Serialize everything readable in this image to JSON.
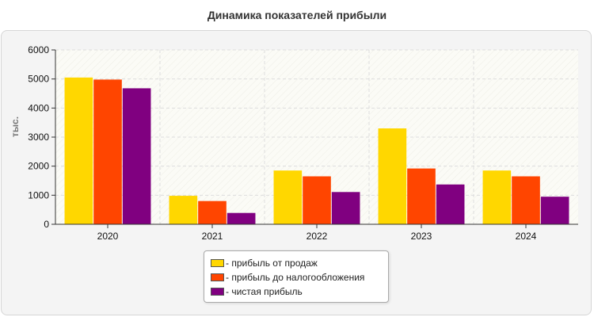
{
  "chart_data": {
    "type": "bar",
    "title": "Динамика показателей прибыли",
    "xlabel": "",
    "ylabel": "тыс.",
    "categories": [
      "2020",
      "2021",
      "2022",
      "2023",
      "2024"
    ],
    "ylim": [
      0,
      6000
    ],
    "yticks": [
      0,
      1000,
      2000,
      3000,
      4000,
      5000,
      6000
    ],
    "grid": true,
    "legend_position": "bottom-center",
    "series": [
      {
        "name": "- прибыль от продаж",
        "color": "#FFD700",
        "values": [
          5050,
          980,
          1850,
          3300,
          1850
        ]
      },
      {
        "name": "- прибыль до налогообложения",
        "color": "#FF4500",
        "values": [
          4980,
          800,
          1650,
          1920,
          1650
        ]
      },
      {
        "name": "- чистая прибыль",
        "color": "#800080",
        "values": [
          4680,
          390,
          1110,
          1370,
          950
        ]
      }
    ]
  }
}
